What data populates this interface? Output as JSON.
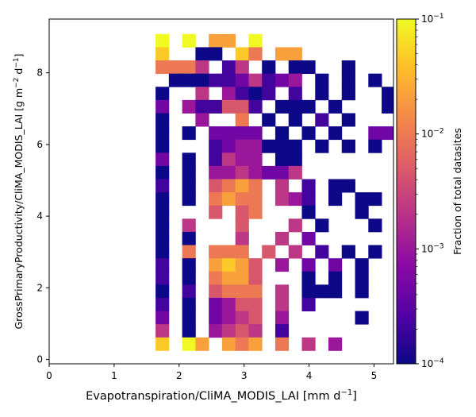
{
  "chart_data": {
    "type": "heatmap",
    "xlabel_main": "Evapotranspiration/CliMA_MODIS_LAI [mm d",
    "xlabel_sup": "−1",
    "xlabel_end": "]",
    "ylabel_main": "GrossPrimaryProductivity/CliMA_MODIS_LAI [g m",
    "ylabel_sup1": "−2",
    "ylabel_mid": " d",
    "ylabel_sup2": "−1",
    "ylabel_end": "]",
    "xlim": [
      0,
      5.3
    ],
    "ylim": [
      -0.12,
      9.5
    ],
    "xticks": [
      0,
      1,
      2,
      3,
      4,
      5
    ],
    "yticks": [
      0,
      2,
      4,
      6,
      8
    ],
    "xtick_labels": [
      "0",
      "1",
      "2",
      "3",
      "4",
      "5"
    ],
    "ytick_labels": [
      "0",
      "2",
      "4",
      "6",
      "8"
    ],
    "colormap": "plasma",
    "colorbar": {
      "label": "Fraction of total datasites",
      "scale": "log",
      "range": [
        0.0001,
        0.1
      ],
      "tick_values": [
        0.0001,
        0.001,
        0.01,
        0.1
      ],
      "ticks": [
        {
          "base": "10",
          "exp": "−4"
        },
        {
          "base": "10",
          "exp": "−3"
        },
        {
          "base": "10",
          "exp": "−2"
        },
        {
          "base": "10",
          "exp": "−1"
        }
      ]
    },
    "bins": {
      "x0": 0,
      "dx": 0.2047,
      "y0": -0.12,
      "dy": 0.3681
    },
    "rows_top_to_bottom": [
      "........9.9.77.9...........",
      "........8..00.86.77.......",
      "........6664.14.0.00..0...",
      ".........0001124123.0.0.0.",
      "........0..4.3101.1.0.0..0",
      "........2.311551.000.0...0",
      "........0..3..6.0.0.1.0...",
      "........0.0.2222.0.0.0..22",
      "........0...1233000.0.0.0.",
      "........2.0.1433.00.......",
      "........0.0.3343224.......",
      "........1.0.5676.4.1.00...",
      "........0.0.6766.431.0.00.",
      "........0...5.56...0...0..",
      "........0.4...5...4.0...0.",
      "........0.0...4..4.2.....",
      "........0.6.666.5.4.1.0.0.",
      "........1.0.7875.3.2.2.0..",
      "........1.0.6775...0.0.0.",
      "........0.1.5666.4.000.0.",
      "........1.0.2355.4.1.....",
      "........2.0.2345.3.....0.",
      "........4.0.3454.1.......",
      "........8.97.767.6.4.3...",
      "........................."
    ]
  }
}
